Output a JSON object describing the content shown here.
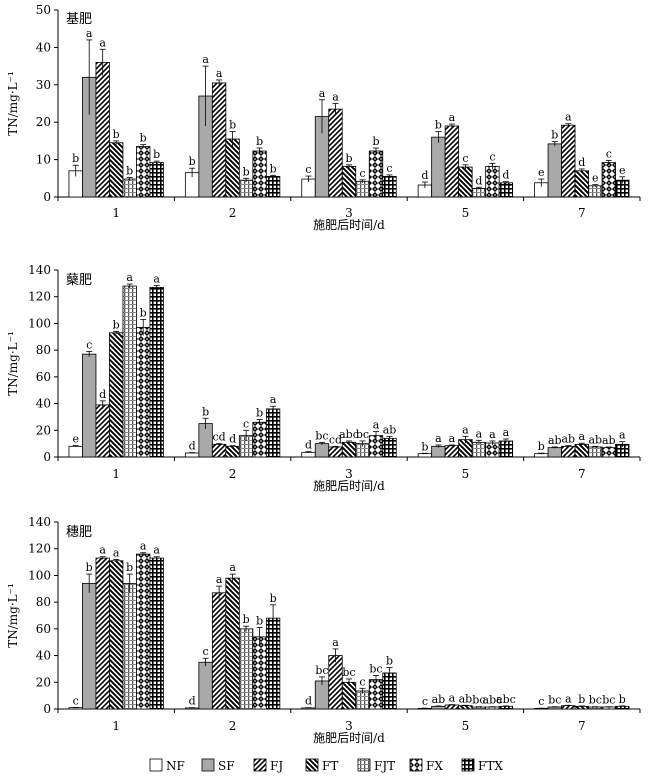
{
  "legend": {
    "placement": "bottom",
    "entries": [
      {
        "name": "NF",
        "pattern": "blank"
      },
      {
        "name": "SF",
        "pattern": "gray"
      },
      {
        "name": "FJ",
        "pattern": "diag"
      },
      {
        "name": "FT",
        "pattern": "backdiag"
      },
      {
        "name": "FJT",
        "pattern": "dotted"
      },
      {
        "name": "FX",
        "pattern": "diamond"
      },
      {
        "name": "FTX",
        "pattern": "grid"
      }
    ]
  },
  "chart_data": [
    {
      "type": "bar",
      "title": "基肥",
      "xlabel": "施肥后时间/d",
      "ylabel": "TN/mg·L⁻¹",
      "ylim": [
        0,
        50
      ],
      "yticks": [
        0,
        10,
        20,
        30,
        40,
        50
      ],
      "categories": [
        "1",
        "2",
        "3",
        "5",
        "7"
      ],
      "series": [
        {
          "name": "NF",
          "values": [
            7.0,
            6.5,
            4.8,
            3.2,
            3.8
          ],
          "errors": [
            1.5,
            1.2,
            0.8,
            0.8,
            1.0
          ],
          "labels": [
            "b",
            "b",
            "c",
            "d",
            "e"
          ]
        },
        {
          "name": "SF",
          "values": [
            32,
            27,
            21.5,
            16,
            14.2
          ],
          "errors": [
            10,
            8,
            4.5,
            1.5,
            0.6
          ],
          "labels": [
            "a",
            "a",
            "a",
            "b",
            "b"
          ]
        },
        {
          "name": "FJ",
          "values": [
            36,
            30.5,
            23.5,
            19,
            19.2
          ],
          "errors": [
            3.5,
            0.8,
            1.5,
            0.5,
            0.4
          ],
          "labels": [
            "a",
            "a",
            "a",
            "a",
            "a"
          ]
        },
        {
          "name": "FT",
          "values": [
            14.5,
            15.5,
            8.2,
            8,
            7
          ],
          "errors": [
            0.5,
            2,
            0.4,
            0.6,
            0.5
          ],
          "labels": [
            "b",
            "b",
            "b",
            "c",
            "d"
          ]
        },
        {
          "name": "FJT",
          "values": [
            4.8,
            4.5,
            4.2,
            2.3,
            3.0
          ],
          "errors": [
            0.4,
            0.5,
            0.4,
            0.3,
            0.3
          ],
          "labels": [
            "b",
            "b",
            "c",
            "d",
            "e"
          ]
        },
        {
          "name": "FX",
          "values": [
            13.5,
            12.3,
            12.3,
            8.2,
            9.2
          ],
          "errors": [
            0.5,
            0.8,
            0.8,
            0.8,
            0.6
          ],
          "labels": [
            "b",
            "b",
            "b",
            "c",
            "c"
          ]
        },
        {
          "name": "FTX",
          "values": [
            9.2,
            5.5,
            5.5,
            3.8,
            4.5
          ],
          "errors": [
            0.4,
            0.3,
            0.4,
            0.3,
            0.9
          ],
          "labels": [
            "b",
            "b",
            "c",
            "d",
            "e"
          ]
        }
      ]
    },
    {
      "type": "bar",
      "title": "蘖肥",
      "xlabel": "施肥后时间/d",
      "ylabel": "TN/mg·L⁻¹",
      "ylim": [
        0,
        140
      ],
      "yticks": [
        0,
        20,
        40,
        60,
        80,
        100,
        120,
        140
      ],
      "categories": [
        "1",
        "2",
        "3",
        "5",
        "7"
      ],
      "series": [
        {
          "name": "NF",
          "values": [
            8,
            3,
            3.5,
            2.5,
            2.5
          ],
          "errors": [
            0.5,
            0.3,
            0.5,
            0.3,
            0.4
          ],
          "labels": [
            "e",
            "d",
            "d",
            "b",
            "b"
          ]
        },
        {
          "name": "SF",
          "values": [
            77,
            25,
            10,
            8,
            7
          ],
          "errors": [
            2,
            4,
            1,
            1,
            0.5
          ],
          "labels": [
            "c",
            "b",
            "bc",
            "a",
            "ab"
          ]
        },
        {
          "name": "FJ",
          "values": [
            39,
            9.5,
            7.5,
            8.5,
            8
          ],
          "errors": [
            3,
            0.5,
            0.5,
            0.5,
            0.5
          ],
          "labels": [
            "d",
            "cd",
            "cd",
            "a",
            "ab"
          ]
        },
        {
          "name": "FT",
          "values": [
            93,
            8,
            11,
            13,
            9.5
          ],
          "errors": [
            1,
            0.5,
            1,
            2.5,
            0.8
          ],
          "labels": [
            "b",
            "d",
            "abc",
            "a",
            "a"
          ]
        },
        {
          "name": "FJT",
          "values": [
            128,
            16,
            10,
            11,
            7.5
          ],
          "errors": [
            1.5,
            4,
            2,
            1.5,
            0.5
          ],
          "labels": [
            "a",
            "c",
            "bc",
            "a",
            "ab"
          ]
        },
        {
          "name": "FX",
          "values": [
            97,
            26,
            16,
            10.5,
            7
          ],
          "errors": [
            6,
            2,
            3,
            1.5,
            0.5
          ],
          "labels": [
            "b",
            "b",
            "a",
            "a",
            "ab"
          ]
        },
        {
          "name": "FTX",
          "values": [
            127,
            36,
            14,
            12,
            9.5
          ],
          "errors": [
            1.5,
            2,
            1.5,
            1.5,
            2
          ],
          "labels": [
            "a",
            "a",
            "ab",
            "a",
            "a"
          ]
        }
      ]
    },
    {
      "type": "bar",
      "title": "穗肥",
      "xlabel": "施肥后时间/d",
      "ylabel": "TN/mg·L⁻¹",
      "ylim": [
        0,
        140
      ],
      "yticks": [
        0,
        20,
        40,
        60,
        80,
        100,
        120,
        140
      ],
      "categories": [
        "1",
        "2",
        "3",
        "5",
        "7"
      ],
      "series": [
        {
          "name": "NF",
          "values": [
            1,
            0.8,
            0.8,
            0.5,
            0.5
          ],
          "errors": [
            0.2,
            0.2,
            0.2,
            0.1,
            0.1
          ],
          "labels": [
            "c",
            "d",
            "d",
            "c",
            "c"
          ]
        },
        {
          "name": "SF",
          "values": [
            94,
            35,
            21,
            2,
            1.5
          ],
          "errors": [
            7,
            3,
            3,
            0.3,
            0.2
          ],
          "labels": [
            "b",
            "c",
            "bc",
            "ab",
            "bc"
          ]
        },
        {
          "name": "FJ",
          "values": [
            113,
            87,
            40,
            3,
            2.5
          ],
          "errors": [
            1,
            5,
            5,
            0.3,
            0.3
          ],
          "labels": [
            "a",
            "a",
            "a",
            "a",
            "a"
          ]
        },
        {
          "name": "FT",
          "values": [
            111,
            98,
            20,
            2.5,
            2.0
          ],
          "errors": [
            1,
            3,
            2.5,
            0.3,
            0.3
          ],
          "labels": [
            "a",
            "a",
            "bc",
            "ab",
            "b"
          ]
        },
        {
          "name": "FJT",
          "values": [
            94,
            60,
            13.5,
            1.5,
            1.5
          ],
          "errors": [
            7,
            2,
            2,
            0.2,
            0.2
          ],
          "labels": [
            "b",
            "b",
            "c",
            "bc",
            "bc"
          ]
        },
        {
          "name": "FX",
          "values": [
            116,
            54,
            22,
            1.5,
            1.5
          ],
          "errors": [
            1,
            7,
            3,
            0.2,
            0.2
          ],
          "labels": [
            "a",
            "b",
            "bc",
            "abc",
            "bc"
          ]
        },
        {
          "name": "FTX",
          "values": [
            113,
            68,
            27,
            2,
            2.0
          ],
          "errors": [
            1,
            10,
            4,
            0.3,
            0.3
          ],
          "labels": [
            "a",
            "b",
            "b",
            "abc",
            "b"
          ]
        }
      ]
    }
  ]
}
